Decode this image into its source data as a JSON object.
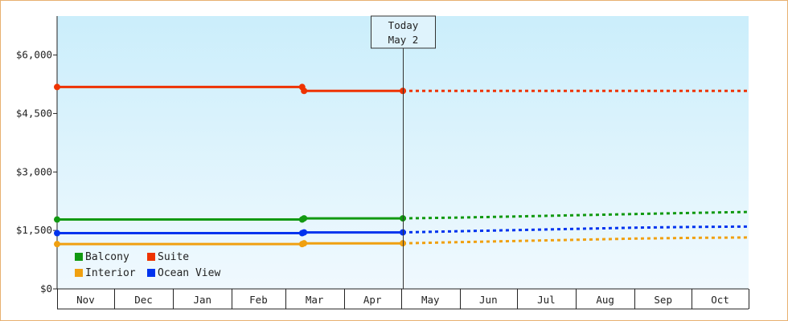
{
  "chart_data": {
    "type": "line",
    "ylim": [
      0,
      7000
    ],
    "y_ticks": [
      0,
      1500,
      3000,
      4500,
      6000
    ],
    "y_tick_labels": [
      "$0",
      "$1,500",
      "$3,000",
      "$4,500",
      "$6,000"
    ],
    "month_labels": [
      "Nov",
      "Dec",
      "Jan",
      "Feb",
      "Mar",
      "Apr",
      "May",
      "Jun",
      "Jul",
      "Aug",
      "Sep",
      "Oct"
    ],
    "x_range": [
      "2021-11-01",
      "2022-10-31"
    ],
    "today": {
      "date": "2022-05-02",
      "line1": "Today",
      "line2": "May 2"
    },
    "background_colors": [
      "#cbeefb",
      "#f0f9fe"
    ],
    "legend_placement": "bottom-left",
    "series": [
      {
        "name": "Balcony",
        "color": "#119911",
        "actual": [
          [
            "2021-11-01",
            1780
          ],
          [
            "2022-03-10",
            1780
          ],
          [
            "2022-03-11",
            1810
          ],
          [
            "2022-05-02",
            1810
          ]
        ],
        "forecast": [
          [
            "2022-05-02",
            1810
          ],
          [
            "2022-06-01",
            1830
          ],
          [
            "2022-07-01",
            1860
          ],
          [
            "2022-08-01",
            1890
          ],
          [
            "2022-09-01",
            1920
          ],
          [
            "2022-10-01",
            1950
          ],
          [
            "2022-10-31",
            1975
          ]
        ]
      },
      {
        "name": "Suite",
        "color": "#ee3300",
        "actual": [
          [
            "2021-11-01",
            5180
          ],
          [
            "2022-03-10",
            5180
          ],
          [
            "2022-03-11",
            5080
          ],
          [
            "2022-05-02",
            5080
          ]
        ],
        "forecast": [
          [
            "2022-05-02",
            5080
          ],
          [
            "2022-10-31",
            5080
          ]
        ]
      },
      {
        "name": "Interior",
        "color": "#f0a010",
        "actual": [
          [
            "2021-11-01",
            1150
          ],
          [
            "2022-03-10",
            1150
          ],
          [
            "2022-03-11",
            1170
          ],
          [
            "2022-05-02",
            1170
          ]
        ],
        "forecast": [
          [
            "2022-05-02",
            1170
          ],
          [
            "2022-06-01",
            1200
          ],
          [
            "2022-07-01",
            1230
          ],
          [
            "2022-08-01",
            1260
          ],
          [
            "2022-09-01",
            1290
          ],
          [
            "2022-10-01",
            1310
          ],
          [
            "2022-10-31",
            1320
          ]
        ]
      },
      {
        "name": "Ocean View",
        "color": "#0033ee",
        "actual": [
          [
            "2021-11-01",
            1430
          ],
          [
            "2022-03-10",
            1430
          ],
          [
            "2022-03-11",
            1450
          ],
          [
            "2022-05-02",
            1450
          ]
        ],
        "forecast": [
          [
            "2022-05-02",
            1450
          ],
          [
            "2022-06-01",
            1480
          ],
          [
            "2022-07-01",
            1510
          ],
          [
            "2022-08-01",
            1540
          ],
          [
            "2022-09-01",
            1570
          ],
          [
            "2022-10-01",
            1590
          ],
          [
            "2022-10-31",
            1600
          ]
        ]
      }
    ]
  }
}
